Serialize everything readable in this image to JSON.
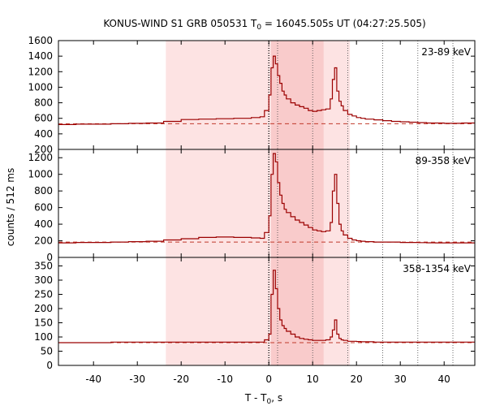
{
  "chart_data": {
    "type": "line",
    "title_prefix": "KONUS-WIND S1 GRB 050531 T",
    "title_sub": "0",
    "title_suffix": " = 16045.505s UT (04:27:25.505)",
    "xlabel_prefix": "T - T",
    "xlabel_sub": "0",
    "xlabel_suffix": ", s",
    "ylabel": "counts / 512 ms",
    "xlim": [
      -48,
      47
    ],
    "xticks": [
      -40,
      -30,
      -20,
      -10,
      0,
      10,
      20,
      30,
      40
    ],
    "shaded_regions": [
      {
        "start": -23.5,
        "end": 18.5,
        "shade": "light"
      },
      {
        "start": 0.5,
        "end": 12.5,
        "shade": "dark"
      }
    ],
    "reference_lines": {
      "dotted_bold": [
        0
      ],
      "dotted": [
        2,
        10,
        18,
        26,
        34,
        42
      ]
    },
    "x_times": [
      -48,
      -44,
      -40,
      -36,
      -32,
      -28,
      -24,
      -20,
      -16,
      -12,
      -8,
      -4,
      -2,
      -1,
      0,
      0.5,
      1,
      1.5,
      2,
      2.5,
      3,
      3.5,
      4,
      5,
      6,
      7,
      8,
      9,
      10,
      11,
      12,
      13,
      14,
      14.5,
      15,
      15.5,
      16,
      16.5,
      17,
      18,
      19,
      20,
      21,
      22,
      24,
      26,
      28,
      30,
      32,
      34,
      36,
      38,
      40,
      42,
      44,
      46,
      47
    ],
    "series": [
      {
        "name": "23-89 keV",
        "ylim": [
          200,
          1600
        ],
        "yticks": [
          200,
          400,
          600,
          800,
          1000,
          1200,
          1400,
          1600
        ],
        "background": 530,
        "values": [
          520,
          525,
          525,
          530,
          535,
          540,
          560,
          585,
          590,
          595,
          600,
          610,
          620,
          700,
          900,
          1250,
          1400,
          1300,
          1150,
          1050,
          950,
          900,
          850,
          800,
          770,
          750,
          730,
          700,
          690,
          700,
          710,
          720,
          850,
          1100,
          1250,
          950,
          820,
          760,
          700,
          650,
          630,
          610,
          600,
          590,
          580,
          570,
          560,
          555,
          550,
          545,
          540,
          540,
          535,
          535,
          540,
          540,
          540
        ]
      },
      {
        "name": "89-358 keV",
        "ylim": [
          0,
          1300
        ],
        "yticks": [
          0,
          200,
          400,
          600,
          800,
          1000,
          1200
        ],
        "background": 185,
        "values": [
          175,
          180,
          180,
          185,
          190,
          195,
          210,
          225,
          240,
          245,
          240,
          235,
          230,
          300,
          500,
          1000,
          1250,
          1150,
          900,
          750,
          650,
          580,
          540,
          490,
          450,
          420,
          390,
          360,
          330,
          320,
          310,
          320,
          420,
          800,
          1000,
          650,
          400,
          320,
          270,
          230,
          210,
          200,
          195,
          190,
          185,
          185,
          185,
          180,
          180,
          178,
          176,
          175,
          175,
          175,
          175,
          175,
          175
        ]
      },
      {
        "name": "358-1354 keV",
        "ylim": [
          0,
          380
        ],
        "yticks": [
          0,
          50,
          100,
          150,
          200,
          250,
          300,
          350
        ],
        "background": 80,
        "values": [
          80,
          80,
          80,
          82,
          82,
          82,
          82,
          82,
          82,
          82,
          82,
          82,
          82,
          90,
          110,
          250,
          335,
          270,
          200,
          160,
          140,
          130,
          120,
          110,
          100,
          95,
          92,
          90,
          88,
          88,
          88,
          90,
          100,
          125,
          160,
          110,
          95,
          90,
          88,
          85,
          85,
          84,
          83,
          83,
          82,
          82,
          82,
          82,
          82,
          82,
          82,
          82,
          82,
          82,
          82,
          82,
          82
        ]
      }
    ],
    "colors": {
      "data_line": "#9b0000",
      "background_line": "#c0392b",
      "light_band": "#fde3e3",
      "dark_band": "#f9cbcb"
    },
    "grid": false
  }
}
